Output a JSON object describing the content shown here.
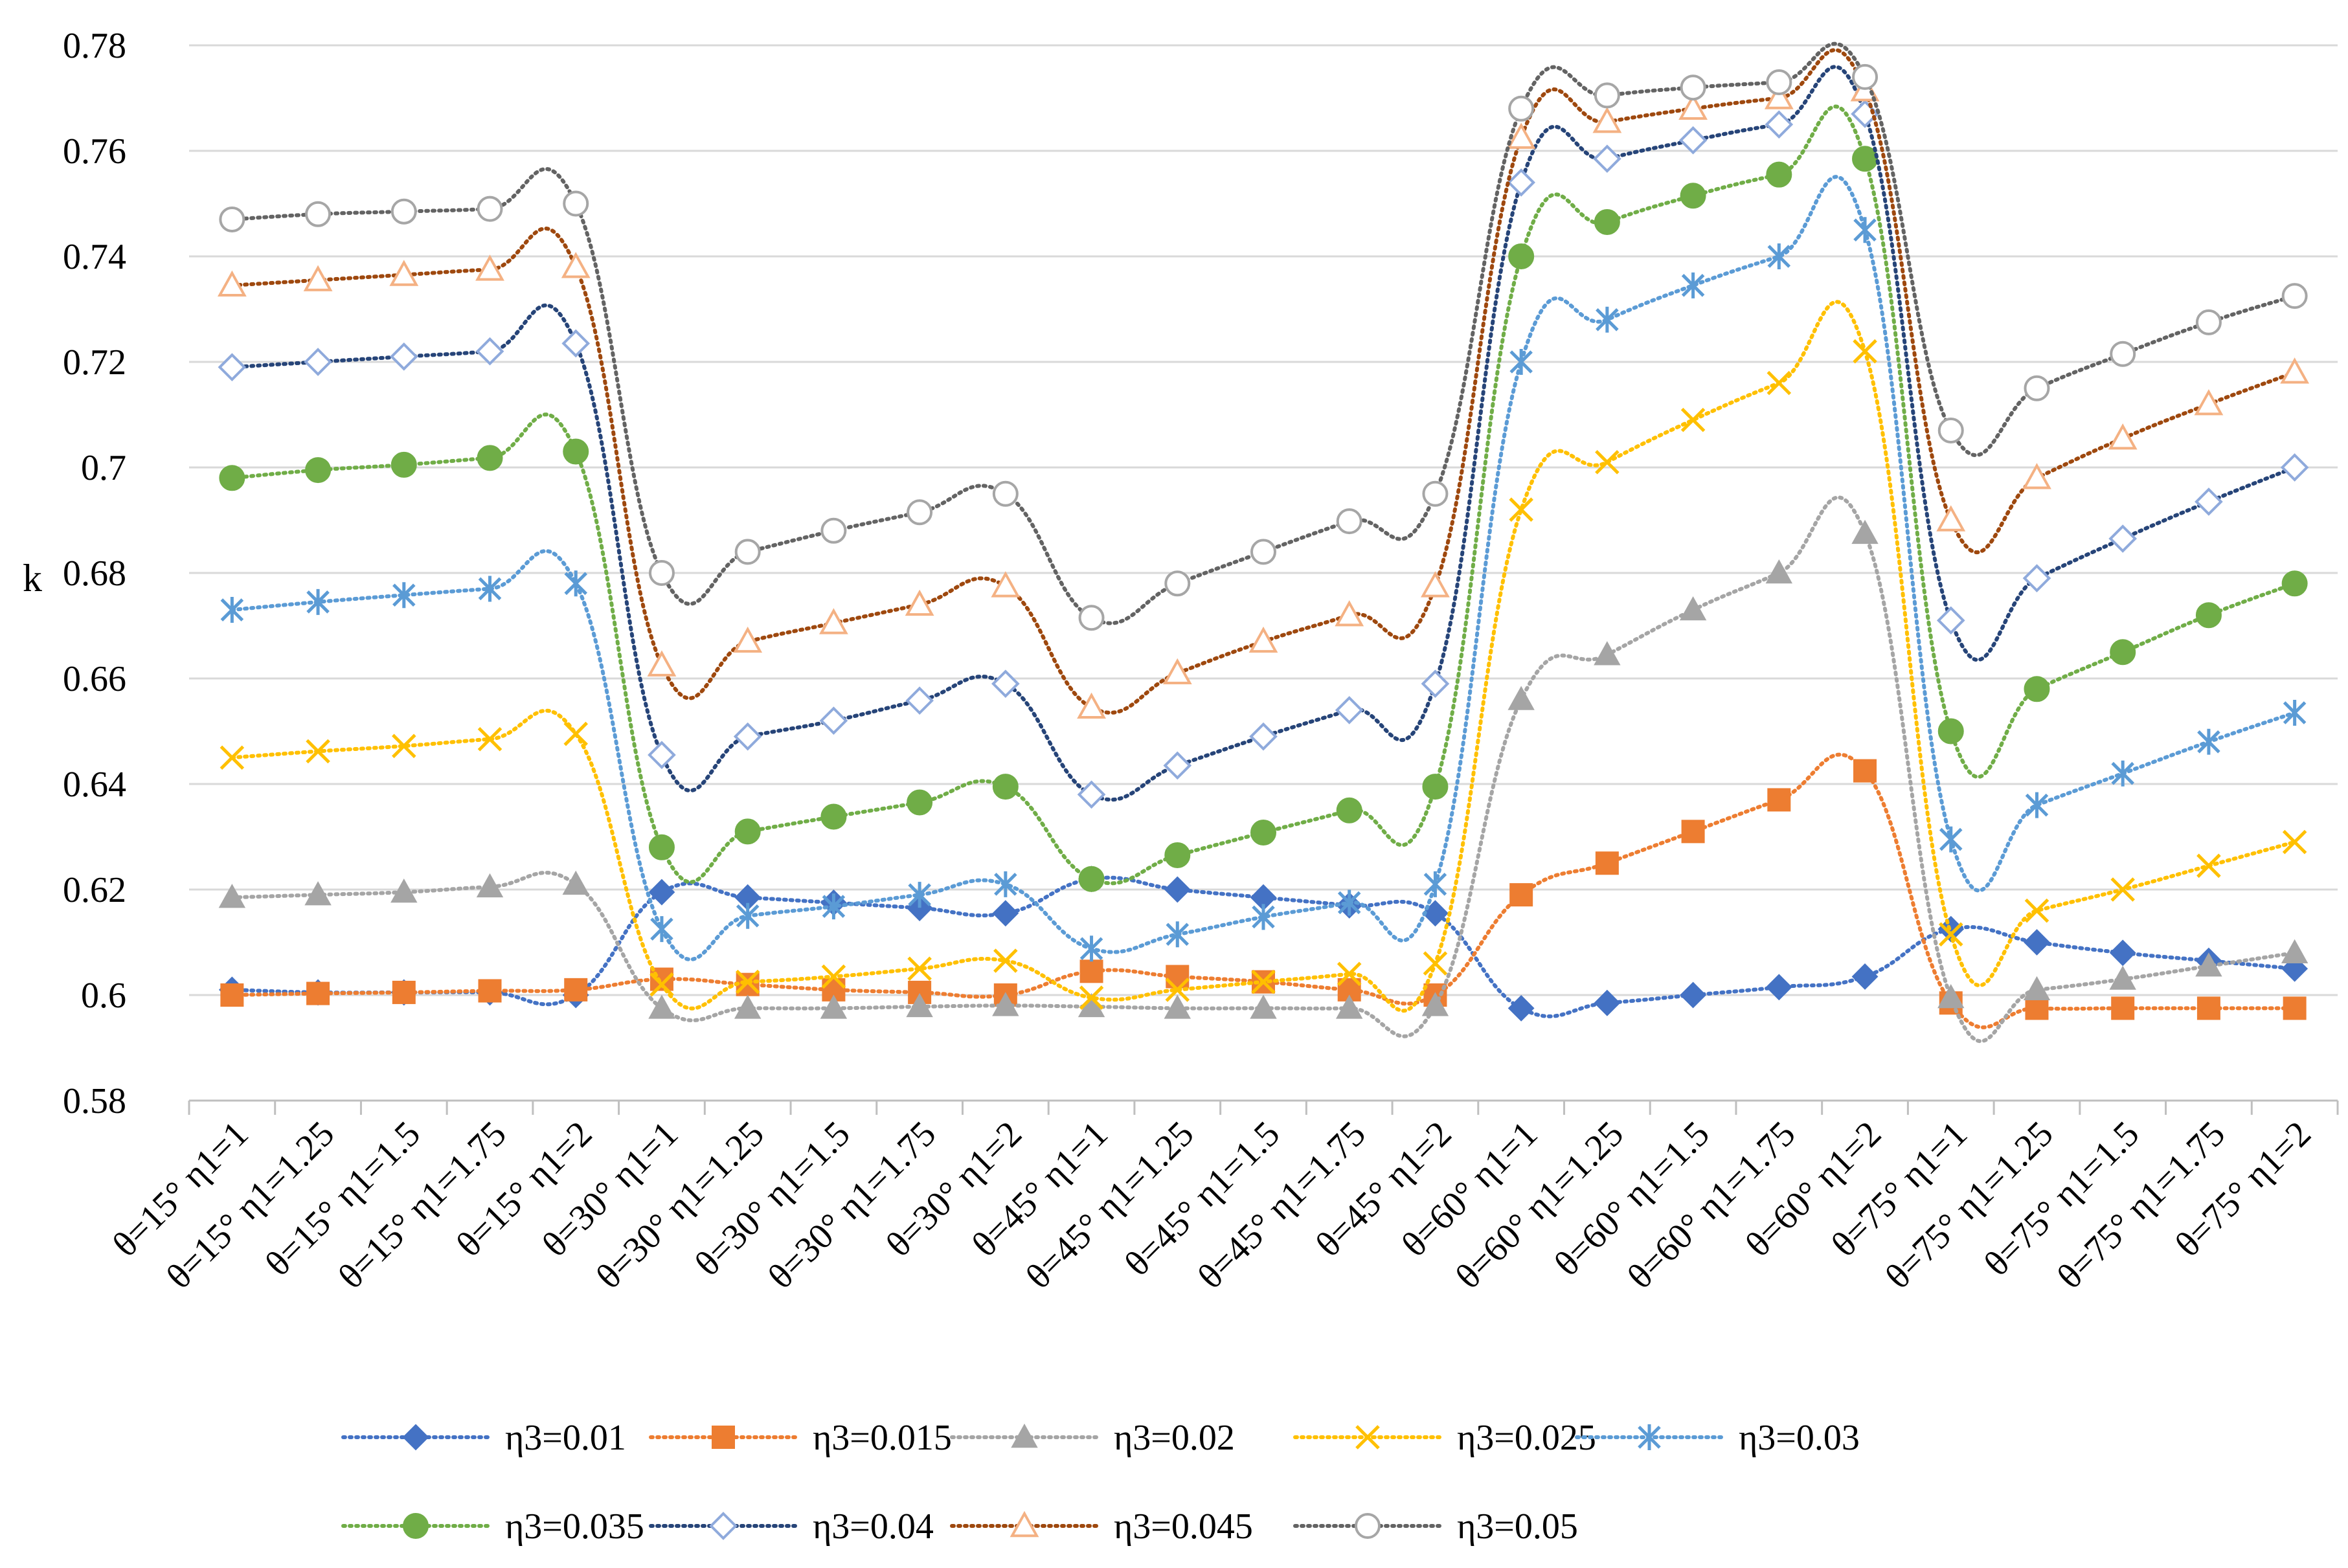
{
  "chart_data": {
    "type": "line",
    "title": "",
    "xlabel": "",
    "ylabel": "k",
    "ylim": [
      0.58,
      0.78
    ],
    "yticks": [
      "0.58",
      "0.6",
      "0.62",
      "0.64",
      "0.66",
      "0.68",
      "0.7",
      "0.72",
      "0.74",
      "0.76",
      "0.78"
    ],
    "grid": true,
    "legend_position": "bottom",
    "categories": [
      "θ=15° η1=1",
      "θ=15° η1=1.25",
      "θ=15° η1=1.5",
      "θ=15° η1=1.75",
      "θ=15° η1=2",
      "θ=30° η1=1",
      "θ=30° η1=1.25",
      "θ=30° η1=1.5",
      "θ=30° η1=1.75",
      "θ=30° η1=2",
      "θ=45° η1=1",
      "θ=45° η1=1.25",
      "θ=45° η1=1.5",
      "θ=45° η1=1.75",
      "θ=45° η1=2",
      "θ=60° η1=1",
      "θ=60° η1=1.25",
      "θ=60° η1=1.5",
      "θ=60° η1=1.75",
      "θ=60° η1=2",
      "θ=75° η1=1",
      "θ=75° η1=1.25",
      "θ=75° η1=1.5",
      "θ=75° η1=1.75",
      "θ=75° η1=2"
    ],
    "series": [
      {
        "name": "η3=0.01",
        "color": "#4472c4",
        "marker": "diamond",
        "values": [
          0.601,
          0.6005,
          0.6005,
          0.6005,
          0.6,
          0.6195,
          0.6185,
          0.6175,
          0.6165,
          0.6155,
          0.622,
          0.62,
          0.6185,
          0.617,
          0.6155,
          0.5975,
          0.5985,
          0.6,
          0.6015,
          0.6035,
          0.6125,
          0.61,
          0.608,
          0.6065,
          0.605
        ]
      },
      {
        "name": "η3=0.015",
        "color": "#ed7d31",
        "marker": "square",
        "values": [
          0.6,
          0.6003,
          0.6005,
          0.6008,
          0.601,
          0.603,
          0.602,
          0.601,
          0.6005,
          0.6,
          0.6045,
          0.6035,
          0.6025,
          0.601,
          0.6,
          0.619,
          0.625,
          0.631,
          0.637,
          0.6425,
          0.5985,
          0.5975,
          0.5975,
          0.5975,
          0.5975
        ]
      },
      {
        "name": "η3=0.02",
        "color": "#a5a5a5",
        "marker": "triangle",
        "values": [
          0.6185,
          0.619,
          0.6195,
          0.6205,
          0.621,
          0.5975,
          0.5975,
          0.5975,
          0.5978,
          0.598,
          0.5978,
          0.5975,
          0.5975,
          0.5975,
          0.598,
          0.656,
          0.6645,
          0.673,
          0.68,
          0.6875,
          0.5995,
          0.601,
          0.603,
          0.6055,
          0.608
        ]
      },
      {
        "name": "η3=0.025",
        "color": "#ffc000",
        "marker": "x",
        "values": [
          0.645,
          0.6462,
          0.6472,
          0.6485,
          0.6495,
          0.602,
          0.6025,
          0.6035,
          0.605,
          0.6065,
          0.5995,
          0.601,
          0.6025,
          0.604,
          0.606,
          0.692,
          0.701,
          0.709,
          0.716,
          0.722,
          0.6115,
          0.616,
          0.62,
          0.6245,
          0.629
        ]
      },
      {
        "name": "η3=0.03",
        "color": "#5b9bd5",
        "marker": "star",
        "values": [
          0.673,
          0.6745,
          0.6758,
          0.677,
          0.678,
          0.6125,
          0.615,
          0.6168,
          0.619,
          0.621,
          0.6088,
          0.6115,
          0.6148,
          0.6175,
          0.621,
          0.72,
          0.728,
          0.7345,
          0.74,
          0.745,
          0.6295,
          0.636,
          0.642,
          0.648,
          0.6535
        ]
      },
      {
        "name": "η3=0.035",
        "color": "#70ad47",
        "marker": "circle",
        "values": [
          0.698,
          0.6995,
          0.7005,
          0.7018,
          0.703,
          0.628,
          0.631,
          0.6338,
          0.6365,
          0.6395,
          0.622,
          0.6265,
          0.6308,
          0.635,
          0.6395,
          0.74,
          0.7465,
          0.7515,
          0.7555,
          0.7585,
          0.65,
          0.658,
          0.665,
          0.672,
          0.678
        ]
      },
      {
        "name": "η3=0.04",
        "color": "#264478",
        "marker": "diamond-open",
        "values": [
          0.719,
          0.72,
          0.721,
          0.722,
          0.7235,
          0.6455,
          0.649,
          0.652,
          0.6558,
          0.659,
          0.638,
          0.6435,
          0.649,
          0.654,
          0.659,
          0.754,
          0.7585,
          0.762,
          0.765,
          0.767,
          0.671,
          0.679,
          0.6865,
          0.6935,
          0.7
        ]
      },
      {
        "name": "η3=0.045",
        "color": "#9e480e",
        "marker": "triangle-open",
        "values": [
          0.7345,
          0.7355,
          0.7365,
          0.7375,
          0.738,
          0.6625,
          0.667,
          0.6705,
          0.674,
          0.6775,
          0.6545,
          0.661,
          0.667,
          0.672,
          0.6775,
          0.7625,
          0.7655,
          0.768,
          0.77,
          0.7715,
          0.69,
          0.698,
          0.7055,
          0.712,
          0.718
        ]
      },
      {
        "name": "η3=0.05",
        "color": "#636363",
        "marker": "circle-open",
        "values": [
          0.747,
          0.748,
          0.7485,
          0.749,
          0.75,
          0.68,
          0.684,
          0.688,
          0.6915,
          0.695,
          0.6715,
          0.678,
          0.684,
          0.6898,
          0.695,
          0.768,
          0.7705,
          0.772,
          0.773,
          0.774,
          0.707,
          0.715,
          0.7215,
          0.7275,
          0.7325
        ]
      }
    ]
  }
}
